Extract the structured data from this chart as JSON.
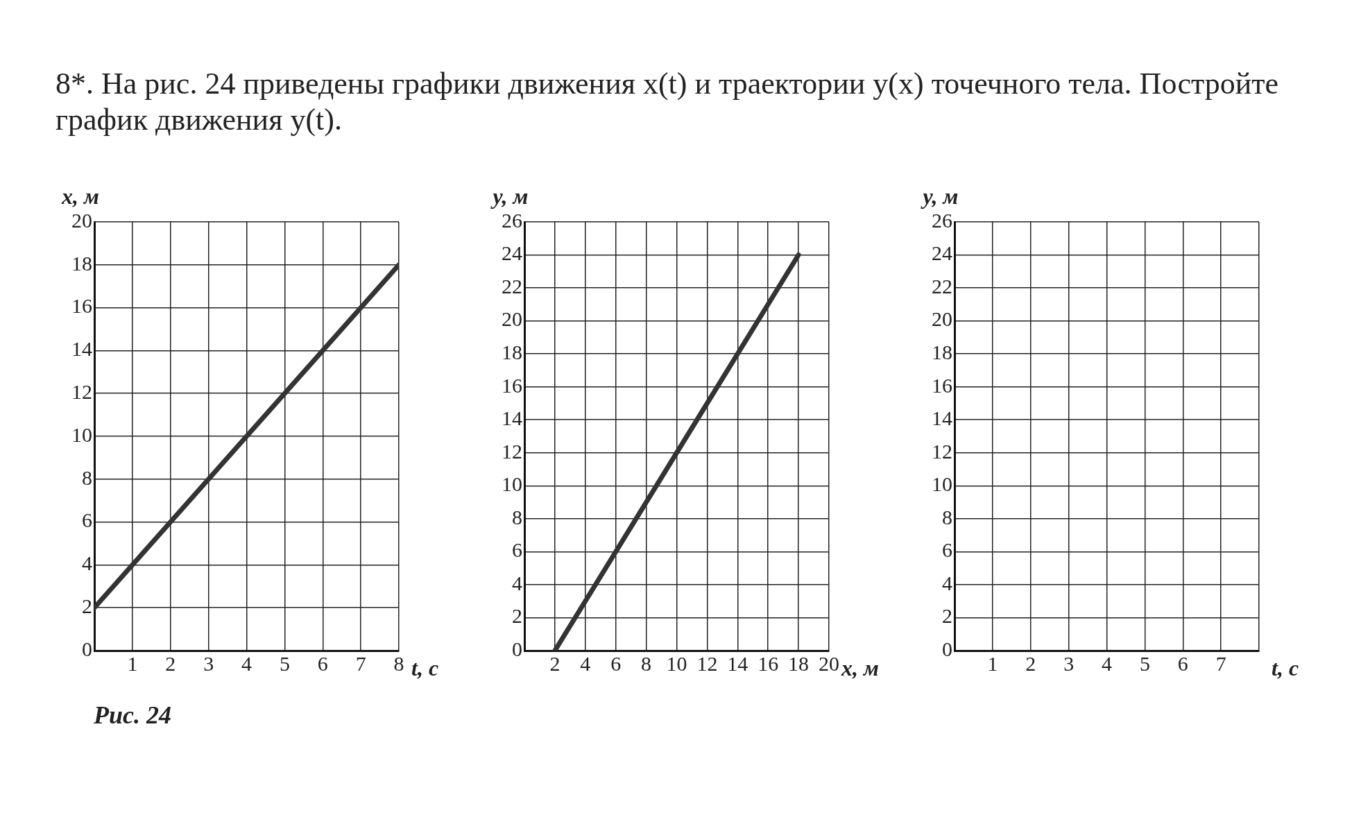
{
  "chart_data": [
    {
      "type": "line",
      "title": "8*. На рис. 24 приведены графики движения x(t) и траектории y(x) точечного тела. Постройте график движения y(t).",
      "annotations": [
        "Рис. 24"
      ],
      "xlabel": "t, с",
      "ylabel": "x, м",
      "x": [
        0,
        8
      ],
      "series": [
        {
          "color": "#333333",
          "values": [
            2,
            18
          ]
        }
      ],
      "xlim": [
        0,
        8
      ],
      "xticks": [
        1,
        2,
        3,
        4,
        5,
        6,
        7,
        8
      ],
      "ylim": [
        0,
        20
      ],
      "yticks": [
        0,
        2,
        4,
        6,
        8,
        10,
        12,
        14,
        16,
        18,
        20
      ],
      "grid": true,
      "legend": false,
      "marker": "none"
    },
    {
      "type": "line",
      "xlabel": "x, м",
      "ylabel": "y, м",
      "x": [
        2,
        18
      ],
      "series": [
        {
          "color": "#333333",
          "values": [
            0,
            24
          ]
        }
      ],
      "xlim": [
        0,
        20
      ],
      "xticks": [
        2,
        4,
        6,
        8,
        10,
        12,
        14,
        16,
        18,
        20
      ],
      "ylim": [
        0,
        26
      ],
      "yticks": [
        0,
        2,
        4,
        6,
        8,
        10,
        12,
        14,
        16,
        18,
        20,
        22,
        24,
        26
      ],
      "grid": true,
      "legend": false,
      "marker": "none"
    },
    {
      "type": "line",
      "xlabel": "t, с",
      "ylabel": "y, м",
      "xlim": [
        0,
        8
      ],
      "xticks": [
        1,
        2,
        3,
        4,
        5,
        6,
        7,
        {
          "value": 8,
          "label": null
        }
      ],
      "ylim": [
        0,
        26
      ],
      "yticks": [
        0,
        2,
        4,
        6,
        8,
        10,
        12,
        14,
        16,
        18,
        20,
        22,
        24,
        26
      ],
      "grid": true,
      "legend": false
    }
  ]
}
